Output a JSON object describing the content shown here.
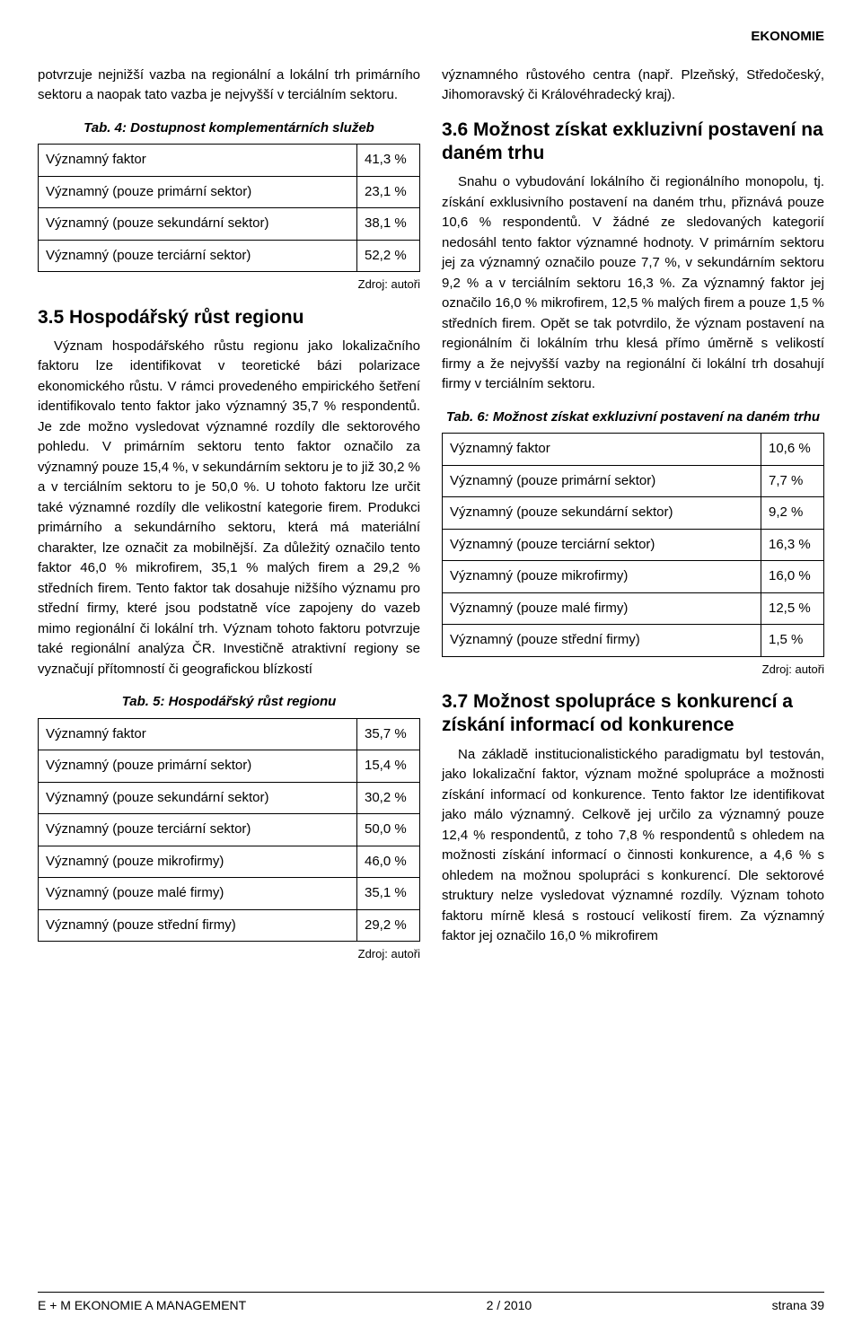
{
  "header": {
    "section": "EKONOMIE"
  },
  "left": {
    "intro": "potvrzuje nejnižší vazba na regionální a lokální trh primárního sektoru a naopak tato vazba je nejvyšší v terciálním sektoru.",
    "tab4": {
      "caption": "Tab. 4: Dostupnost komplementárních služeb",
      "rows": [
        [
          "Významný faktor",
          "41,3 %"
        ],
        [
          "Významný (pouze primární sektor)",
          "23,1 %"
        ],
        [
          "Významný (pouze sekundární sektor)",
          "38,1 %"
        ],
        [
          "Významný (pouze terciární sektor)",
          "52,2 %"
        ]
      ],
      "source": "Zdroj: autoři"
    },
    "h35": "3.5 Hospodářský růst regionu",
    "p35": "Význam hospodářského růstu regionu jako lokalizačního faktoru lze identifikovat v teoretické bázi polarizace ekonomického růstu. V rámci provedeného empirického šetření identifikovalo tento faktor jako významný 35,7 % respondentů. Je zde možno vysledovat významné rozdíly dle sektorového pohledu. V primárním sektoru tento faktor označilo za významný pouze 15,4 %, v sekundárním sektoru je to již 30,2 % a v terciálním sektoru to je 50,0 %. U tohoto faktoru lze určit také významné rozdíly dle velikostní kategorie firem. Produkci primárního a sekundárního sektoru, která má materiální charakter, lze označit za mobilnější. Za důležitý označilo tento faktor 46,0 % mikrofirem, 35,1 % malých firem a 29,2 % středních firem. Tento faktor tak dosahuje nižšího významu pro střední firmy, které jsou podstatně více zapojeny do vazeb mimo regionální či lokální trh. Význam tohoto faktoru potvrzuje také regionální analýza ČR. Investičně atraktivní regiony se vyznačují přítomností či geografickou blízkostí",
    "tab5": {
      "caption": "Tab. 5: Hospodářský růst regionu",
      "rows": [
        [
          "Významný faktor",
          "35,7 %"
        ],
        [
          "Významný (pouze primární sektor)",
          "15,4 %"
        ],
        [
          "Významný (pouze sekundární sektor)",
          "30,2 %"
        ],
        [
          "Významný (pouze terciární sektor)",
          "50,0 %"
        ],
        [
          "Významný (pouze mikrofirmy)",
          "46,0 %"
        ],
        [
          "Významný (pouze malé firmy)",
          "35,1 %"
        ],
        [
          "Významný (pouze střední firmy)",
          "29,2 %"
        ]
      ],
      "source": "Zdroj: autoři"
    }
  },
  "right": {
    "intro": "významného růstového centra (např. Plzeňský, Středočeský, Jihomoravský či Královéhradecký kraj).",
    "h36": "3.6 Možnost získat exkluzivní postavení na daném trhu",
    "p36": "Snahu o vybudování lokálního či regionálního monopolu, tj. získání exklusivního postavení na daném trhu, přiznává pouze 10,6 % respondentů. V žádné ze sledovaných kategorií nedosáhl tento faktor významné hodnoty. V primárním sektoru jej za významný označilo pouze 7,7 %, v sekundárním sektoru 9,2 % a v terciálním sektoru 16,3 %. Za významný faktor jej označilo 16,0 % mikrofirem, 12,5 % malých firem a pouze 1,5 % středních firem. Opět se tak potvrdilo, že význam postavení na regionálním či lokálním trhu klesá přímo úměrně s velikostí firmy a že nejvyšší vazby na regionální či lokální trh dosahují firmy v terciálním sektoru.",
    "tab6": {
      "caption": "Tab. 6: Možnost získat exkluzivní postavení na daném trhu",
      "rows": [
        [
          "Významný faktor",
          "10,6 %"
        ],
        [
          "Významný (pouze primární sektor)",
          "7,7 %"
        ],
        [
          "Významný (pouze sekundární sektor)",
          "9,2 %"
        ],
        [
          "Významný (pouze terciární sektor)",
          "16,3 %"
        ],
        [
          "Významný (pouze mikrofirmy)",
          "16,0 %"
        ],
        [
          "Významný (pouze malé firmy)",
          "12,5 %"
        ],
        [
          "Významný (pouze střední firmy)",
          "1,5 %"
        ]
      ],
      "source": "Zdroj: autoři"
    },
    "h37": "3.7 Možnost spolupráce s kon­kurencí a získání informací od kon­kurence",
    "p37": "Na základě institucionalistického paradigmatu byl testován, jako lokalizační faktor, význam možné spolupráce a možnosti získání informací od konkurence. Tento faktor lze identifikovat jako málo významný. Celkově jej určilo za významný pouze 12,4 % respondentů, z toho 7,8 % respondentů s ohledem na možnosti získání informací o činnosti konkurence, a 4,6 % s ohledem na možnou spolupráci s konkurencí. Dle sektorové struktury nelze vysledovat významné rozdíly. Význam tohoto faktoru mírně klesá s rostoucí velikostí firem. Za významný faktor jej označilo 16,0 % mikrofirem"
  },
  "footer": {
    "left": "E + M EKONOMIE A MANAGEMENT",
    "center": "2 / 2010",
    "right": "strana 39"
  }
}
